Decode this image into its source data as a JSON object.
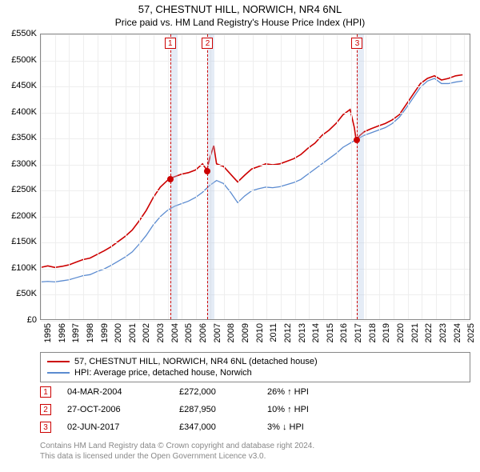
{
  "title": {
    "line1": "57, CHESTNUT HILL, NORWICH, NR4 6NL",
    "line2": "Price paid vs. HM Land Registry's House Price Index (HPI)"
  },
  "chart": {
    "type": "line",
    "background_color": "#ffffff",
    "grid_color": "#eeeeee",
    "border_color": "#888888",
    "y": {
      "min": 0,
      "max": 550000,
      "tick_step": 50000,
      "tick_labels": [
        "£0",
        "£50K",
        "£100K",
        "£150K",
        "£200K",
        "£250K",
        "£300K",
        "£350K",
        "£400K",
        "£450K",
        "£500K",
        "£550K"
      ]
    },
    "x": {
      "min": 1995,
      "max": 2025.5,
      "ticks": [
        1995,
        1996,
        1997,
        1998,
        1999,
        2000,
        2001,
        2002,
        2003,
        2004,
        2005,
        2006,
        2007,
        2008,
        2009,
        2010,
        2011,
        2012,
        2013,
        2014,
        2015,
        2016,
        2017,
        2018,
        2019,
        2020,
        2021,
        2022,
        2023,
        2024,
        2025
      ]
    },
    "series": [
      {
        "id": "price_paid",
        "label": "57, CHESTNUT HILL, NORWICH, NR4 6NL (detached house)",
        "color": "#cc0000",
        "width": 1.6,
        "data": [
          [
            1995,
            100000
          ],
          [
            1995.5,
            103000
          ],
          [
            1996,
            100000
          ],
          [
            1996.5,
            102000
          ],
          [
            1997,
            105000
          ],
          [
            1997.5,
            110000
          ],
          [
            1998,
            115000
          ],
          [
            1998.5,
            118000
          ],
          [
            1999,
            125000
          ],
          [
            1999.5,
            132000
          ],
          [
            2000,
            140000
          ],
          [
            2000.5,
            150000
          ],
          [
            2001,
            160000
          ],
          [
            2001.5,
            172000
          ],
          [
            2002,
            190000
          ],
          [
            2002.5,
            210000
          ],
          [
            2003,
            235000
          ],
          [
            2003.5,
            255000
          ],
          [
            2004,
            268000
          ],
          [
            2004.17,
            272000
          ],
          [
            2004.5,
            275000
          ],
          [
            2005,
            280000
          ],
          [
            2005.5,
            283000
          ],
          [
            2006,
            288000
          ],
          [
            2006.5,
            300000
          ],
          [
            2006.82,
            287950
          ],
          [
            2007,
            310000
          ],
          [
            2007.3,
            335000
          ],
          [
            2007.5,
            300000
          ],
          [
            2008,
            295000
          ],
          [
            2008.5,
            280000
          ],
          [
            2009,
            265000
          ],
          [
            2009.5,
            278000
          ],
          [
            2010,
            290000
          ],
          [
            2010.5,
            295000
          ],
          [
            2011,
            300000
          ],
          [
            2011.5,
            298000
          ],
          [
            2012,
            300000
          ],
          [
            2012.5,
            305000
          ],
          [
            2013,
            310000
          ],
          [
            2013.5,
            318000
          ],
          [
            2014,
            330000
          ],
          [
            2014.5,
            340000
          ],
          [
            2015,
            355000
          ],
          [
            2015.5,
            365000
          ],
          [
            2016,
            378000
          ],
          [
            2016.5,
            395000
          ],
          [
            2017,
            405000
          ],
          [
            2017.3,
            370000
          ],
          [
            2017.42,
            347000
          ],
          [
            2017.7,
            355000
          ],
          [
            2018,
            362000
          ],
          [
            2018.5,
            368000
          ],
          [
            2019,
            373000
          ],
          [
            2019.5,
            378000
          ],
          [
            2020,
            385000
          ],
          [
            2020.5,
            395000
          ],
          [
            2021,
            415000
          ],
          [
            2021.5,
            435000
          ],
          [
            2022,
            455000
          ],
          [
            2022.5,
            465000
          ],
          [
            2023,
            470000
          ],
          [
            2023.5,
            462000
          ],
          [
            2024,
            465000
          ],
          [
            2024.5,
            470000
          ],
          [
            2025,
            472000
          ]
        ]
      },
      {
        "id": "hpi",
        "label": "HPI: Average price, detached house, Norwich",
        "color": "#5b8bd0",
        "width": 1.3,
        "data": [
          [
            1995,
            72000
          ],
          [
            1995.5,
            73000
          ],
          [
            1996,
            72000
          ],
          [
            1996.5,
            74000
          ],
          [
            1997,
            76000
          ],
          [
            1997.5,
            80000
          ],
          [
            1998,
            84000
          ],
          [
            1998.5,
            86000
          ],
          [
            1999,
            92000
          ],
          [
            1999.5,
            97000
          ],
          [
            2000,
            104000
          ],
          [
            2000.5,
            112000
          ],
          [
            2001,
            120000
          ],
          [
            2001.5,
            130000
          ],
          [
            2002,
            145000
          ],
          [
            2002.5,
            162000
          ],
          [
            2003,
            182000
          ],
          [
            2003.5,
            198000
          ],
          [
            2004,
            210000
          ],
          [
            2004.5,
            218000
          ],
          [
            2005,
            223000
          ],
          [
            2005.5,
            228000
          ],
          [
            2006,
            235000
          ],
          [
            2006.5,
            245000
          ],
          [
            2007,
            258000
          ],
          [
            2007.5,
            268000
          ],
          [
            2008,
            262000
          ],
          [
            2008.5,
            245000
          ],
          [
            2009,
            225000
          ],
          [
            2009.5,
            238000
          ],
          [
            2010,
            248000
          ],
          [
            2010.5,
            252000
          ],
          [
            2011,
            255000
          ],
          [
            2011.5,
            254000
          ],
          [
            2012,
            256000
          ],
          [
            2012.5,
            260000
          ],
          [
            2013,
            264000
          ],
          [
            2013.5,
            270000
          ],
          [
            2014,
            280000
          ],
          [
            2014.5,
            290000
          ],
          [
            2015,
            300000
          ],
          [
            2015.5,
            310000
          ],
          [
            2016,
            320000
          ],
          [
            2016.5,
            332000
          ],
          [
            2017,
            340000
          ],
          [
            2017.5,
            348000
          ],
          [
            2018,
            355000
          ],
          [
            2018.5,
            360000
          ],
          [
            2019,
            365000
          ],
          [
            2019.5,
            370000
          ],
          [
            2020,
            378000
          ],
          [
            2020.5,
            390000
          ],
          [
            2021,
            408000
          ],
          [
            2021.5,
            428000
          ],
          [
            2022,
            448000
          ],
          [
            2022.5,
            460000
          ],
          [
            2023,
            465000
          ],
          [
            2023.5,
            455000
          ],
          [
            2024,
            455000
          ],
          [
            2024.5,
            458000
          ],
          [
            2025,
            460000
          ]
        ]
      }
    ],
    "markers": [
      {
        "n": "1",
        "year": 2004.17,
        "value": 272000,
        "band_width_years": 0.5
      },
      {
        "n": "2",
        "year": 2006.82,
        "value": 287950,
        "band_width_years": 0.5
      },
      {
        "n": "3",
        "year": 2017.42,
        "value": 347000,
        "band_width_years": 0.5
      }
    ]
  },
  "legend": {
    "items": [
      {
        "color": "#cc0000",
        "label": "57, CHESTNUT HILL, NORWICH, NR4 6NL (detached house)"
      },
      {
        "color": "#5b8bd0",
        "label": "HPI: Average price, detached house, Norwich"
      }
    ]
  },
  "transactions": [
    {
      "n": "1",
      "date": "04-MAR-2004",
      "price": "£272,000",
      "delta": "26% ↑ HPI"
    },
    {
      "n": "2",
      "date": "27-OCT-2006",
      "price": "£287,950",
      "delta": "10% ↑ HPI"
    },
    {
      "n": "3",
      "date": "02-JUN-2017",
      "price": "£347,000",
      "delta": "3% ↓ HPI"
    }
  ],
  "footer": {
    "line1": "Contains HM Land Registry data © Crown copyright and database right 2024.",
    "line2": "This data is licensed under the Open Government Licence v3.0."
  }
}
